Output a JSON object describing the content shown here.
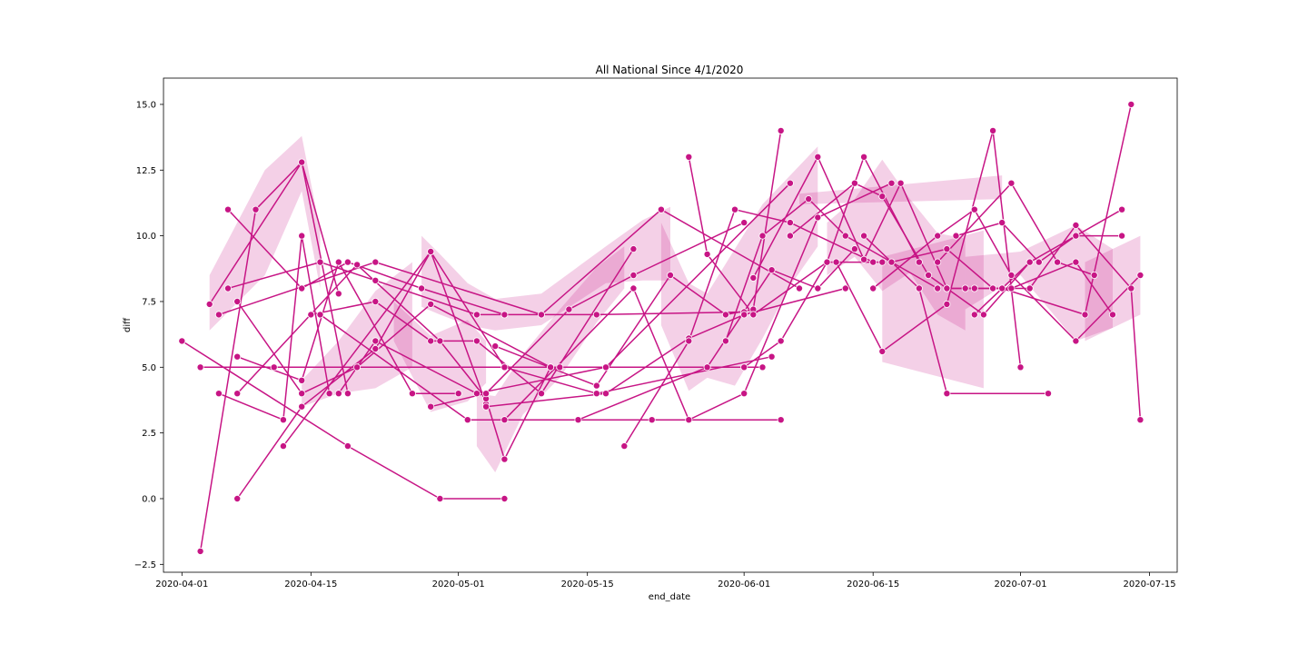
{
  "chart_data": {
    "type": "line",
    "title": "All National Since 4/1/2020",
    "xlabel": "end_date",
    "ylabel": "diff",
    "x_is_date": true,
    "xlim": [
      "2020-03-30",
      "2020-07-18"
    ],
    "ylim": [
      -2.8,
      16.0
    ],
    "x_ticks": [
      "2020-04-01",
      "2020-04-15",
      "2020-05-01",
      "2020-05-15",
      "2020-06-01",
      "2020-06-15",
      "2020-07-01",
      "2020-07-15"
    ],
    "y_ticks": [
      -2.5,
      0.0,
      2.5,
      5.0,
      7.5,
      10.0,
      12.5,
      15.0
    ],
    "y_tick_labels": [
      "−2.5",
      "0.0",
      "2.5",
      "5.0",
      "7.5",
      "10.0",
      "12.5",
      "15.0"
    ],
    "grid": false,
    "colors": {
      "line": "#c71585",
      "band": "#c71585",
      "marker_edge": "#ffffff"
    },
    "bands": [
      {
        "x": [
          "2020-04-04",
          "2020-04-10",
          "2020-04-14",
          "2020-04-16"
        ],
        "lower": [
          6.4,
          8.5,
          11.7,
          8.0
        ],
        "upper": [
          8.5,
          12.5,
          13.8,
          10.2
        ]
      },
      {
        "x": [
          "2020-04-14",
          "2020-04-18",
          "2020-04-22",
          "2020-04-26"
        ],
        "lower": [
          3.5,
          4.0,
          4.2,
          5.0
        ],
        "upper": [
          4.5,
          6.0,
          7.9,
          9.0
        ]
      },
      {
        "x": [
          "2020-04-27",
          "2020-04-29",
          "2020-05-02",
          "2020-05-05",
          "2020-05-10",
          "2020-05-17",
          "2020-05-21",
          "2020-05-24"
        ],
        "lower": [
          7.3,
          7.0,
          6.6,
          6.4,
          6.6,
          8.2,
          8.3,
          8.3
        ],
        "upper": [
          10.0,
          9.3,
          8.2,
          7.6,
          7.8,
          9.6,
          10.6,
          11.1
        ]
      },
      {
        "x": [
          "2020-04-24",
          "2020-04-28",
          "2020-05-02",
          "2020-05-04"
        ],
        "lower": [
          6.0,
          3.3,
          3.7,
          4.4
        ],
        "upper": [
          7.5,
          6.2,
          6.8,
          6.0
        ]
      },
      {
        "x": [
          "2020-05-03",
          "2020-05-05",
          "2020-05-08",
          "2020-05-12",
          "2020-05-16",
          "2020-05-19"
        ],
        "lower": [
          2.0,
          1.0,
          3.2,
          4.6,
          6.7,
          8.0
        ],
        "upper": [
          4.0,
          3.9,
          5.5,
          7.2,
          8.8,
          9.6
        ]
      },
      {
        "x": [
          "2020-05-23",
          "2020-05-26",
          "2020-05-28",
          "2020-05-31",
          "2020-06-03",
          "2020-06-06",
          "2020-06-09"
        ],
        "lower": [
          6.6,
          4.1,
          4.6,
          4.3,
          6.1,
          8.1,
          9.6
        ],
        "upper": [
          10.5,
          8.2,
          7.8,
          9.5,
          11.2,
          12.3,
          13.4
        ]
      },
      {
        "x": [
          "2020-06-10",
          "2020-06-13",
          "2020-06-16",
          "2020-06-19",
          "2020-06-22",
          "2020-06-25"
        ],
        "lower": [
          8.5,
          9.2,
          7.9,
          8.6,
          7.0,
          6.4
        ],
        "upper": [
          10.5,
          11.4,
          12.9,
          11.4,
          10.1,
          9.9
        ]
      },
      {
        "x": [
          "2020-06-16",
          "2020-06-27"
        ],
        "lower": [
          5.2,
          4.2
        ],
        "upper": [
          9.2,
          10.2
        ]
      },
      {
        "x": [
          "2020-06-07",
          "2020-06-29"
        ],
        "lower": [
          11.2,
          11.4
        ],
        "upper": [
          11.6,
          12.3
        ]
      },
      {
        "x": [
          "2020-06-25",
          "2020-07-01",
          "2020-07-07",
          "2020-07-11"
        ],
        "lower": [
          7.2,
          8.5,
          6.0,
          6.5
        ],
        "upper": [
          9.2,
          9.4,
          10.4,
          9.5
        ]
      },
      {
        "x": [
          "2020-07-08",
          "2020-07-14"
        ],
        "lower": [
          6.0,
          7.0
        ],
        "upper": [
          9.0,
          10.0
        ]
      }
    ],
    "series": [
      {
        "x": [
          "2020-04-01",
          "2020-04-19",
          "2020-04-29",
          "2020-05-06"
        ],
        "y": [
          6.0,
          2.0,
          0.0,
          0.0
        ]
      },
      {
        "x": [
          "2020-04-03",
          "2020-04-09",
          "2020-04-14",
          "2020-04-19"
        ],
        "y": [
          -2.0,
          11.0,
          12.8,
          4.0
        ]
      },
      {
        "x": [
          "2020-04-04",
          "2020-04-14",
          "2020-04-18"
        ],
        "y": [
          7.4,
          12.8,
          7.8
        ]
      },
      {
        "x": [
          "2020-04-05",
          "2020-04-12",
          "2020-04-14",
          "2020-04-17"
        ],
        "y": [
          4.0,
          3.0,
          10.0,
          4.0
        ]
      },
      {
        "x": [
          "2020-04-06",
          "2020-04-14",
          "2020-04-19",
          "2020-04-27",
          "2020-05-06"
        ],
        "y": [
          11.0,
          8.0,
          9.0,
          8.0,
          7.0
        ]
      },
      {
        "x": [
          "2020-04-07",
          "2020-04-14",
          "2020-04-22",
          "2020-04-28",
          "2020-05-04"
        ],
        "y": [
          0.0,
          3.5,
          5.7,
          9.4,
          3.6
        ]
      },
      {
        "x": [
          "2020-04-07",
          "2020-04-14",
          "2020-04-20",
          "2020-04-28",
          "2020-05-11"
        ],
        "y": [
          7.5,
          4.0,
          5.0,
          7.4,
          5.0
        ]
      },
      {
        "x": [
          "2020-04-07",
          "2020-04-14",
          "2020-04-18",
          "2020-04-26",
          "2020-05-01"
        ],
        "y": [
          5.4,
          4.5,
          9.0,
          4.0,
          4.0
        ]
      },
      {
        "x": [
          "2020-04-03",
          "2020-04-11",
          "2020-05-12",
          "2020-06-03"
        ],
        "y": [
          5.0,
          5.0,
          5.0,
          5.0
        ]
      },
      {
        "x": [
          "2020-04-06",
          "2020-04-16",
          "2020-04-22",
          "2020-05-03",
          "2020-05-16",
          "2020-06-01"
        ],
        "y": [
          8.0,
          9.0,
          8.3,
          7.0,
          7.0,
          7.1
        ]
      },
      {
        "x": [
          "2020-04-05",
          "2020-04-22",
          "2020-05-10",
          "2020-05-23",
          "2020-06-07"
        ],
        "y": [
          7.0,
          9.0,
          7.0,
          11.0,
          8.0
        ]
      },
      {
        "x": [
          "2020-04-07",
          "2020-04-20",
          "2020-04-29",
          "2020-05-04",
          "2020-05-06",
          "2020-05-11"
        ],
        "y": [
          4.0,
          8.9,
          6.0,
          3.8,
          1.5,
          5.0
        ]
      },
      {
        "x": [
          "2020-04-15",
          "2020-04-22",
          "2020-04-28",
          "2020-05-03",
          "2020-05-10",
          "2020-05-20"
        ],
        "y": [
          7.0,
          7.5,
          6.0,
          6.0,
          4.0,
          9.5
        ]
      },
      {
        "x": [
          "2020-04-12",
          "2020-04-28",
          "2020-05-06",
          "2020-05-16",
          "2020-06-04"
        ],
        "y": [
          2.0,
          9.4,
          5.0,
          4.0,
          5.4
        ]
      },
      {
        "x": [
          "2020-04-16",
          "2020-05-02",
          "2020-05-06",
          "2020-05-22",
          "2020-06-05"
        ],
        "y": [
          7.0,
          3.0,
          3.0,
          3.0,
          3.0
        ]
      },
      {
        "x": [
          "2020-04-18",
          "2020-04-22",
          "2020-05-03",
          "2020-05-17",
          "2020-06-06"
        ],
        "y": [
          4.0,
          6.0,
          4.0,
          5.0,
          12.0
        ]
      },
      {
        "x": [
          "2020-04-28",
          "2020-05-04",
          "2020-05-13",
          "2020-05-20",
          "2020-06-01"
        ],
        "y": [
          3.5,
          4.0,
          7.2,
          8.5,
          10.5
        ]
      },
      {
        "x": [
          "2020-05-04",
          "2020-05-17",
          "2020-05-26",
          "2020-06-01",
          "2020-06-12"
        ],
        "y": [
          3.5,
          4.0,
          6.1,
          7.0,
          8.0
        ]
      },
      {
        "x": [
          "2020-05-05",
          "2020-05-16",
          "2020-05-24",
          "2020-05-30",
          "2020-06-02",
          "2020-06-05"
        ],
        "y": [
          5.8,
          4.3,
          8.5,
          7.0,
          7.2,
          14.0
        ]
      },
      {
        "x": [
          "2020-05-06",
          "2020-05-20",
          "2020-05-26",
          "2020-06-01",
          "2020-06-09",
          "2020-06-17"
        ],
        "y": [
          3.0,
          8.0,
          3.0,
          4.0,
          10.7,
          12.0
        ]
      },
      {
        "x": [
          "2020-05-19",
          "2020-05-26",
          "2020-05-31",
          "2020-06-06",
          "2020-06-15"
        ],
        "y": [
          2.0,
          6.0,
          11.0,
          10.5,
          9.0
        ]
      },
      {
        "x": [
          "2020-05-14",
          "2020-05-28",
          "2020-06-04",
          "2020-06-09",
          "2020-06-13"
        ],
        "y": [
          3.0,
          5.0,
          8.7,
          8.0,
          9.5
        ]
      },
      {
        "x": [
          "2020-05-26",
          "2020-05-28",
          "2020-06-02",
          "2020-06-10",
          "2020-06-16"
        ],
        "y": [
          13.0,
          9.3,
          7.0,
          9.0,
          9.0
        ]
      },
      {
        "x": [
          "2020-05-30",
          "2020-06-03",
          "2020-06-08",
          "2020-06-12",
          "2020-06-22"
        ],
        "y": [
          6.0,
          10.0,
          11.4,
          10.0,
          8.0
        ]
      },
      {
        "x": [
          "2020-06-01",
          "2020-06-05",
          "2020-06-10",
          "2020-06-14",
          "2020-06-20"
        ],
        "y": [
          5.0,
          6.0,
          9.0,
          13.0,
          9.0
        ]
      },
      {
        "x": [
          "2020-06-02",
          "2020-06-09",
          "2020-06-14",
          "2020-06-18",
          "2020-06-23",
          "2020-06-26"
        ],
        "y": [
          8.4,
          13.0,
          9.1,
          12.0,
          8.0,
          8.0
        ]
      },
      {
        "x": [
          "2020-06-06",
          "2020-06-13",
          "2020-06-16",
          "2020-06-21",
          "2020-06-27",
          "2020-07-02"
        ],
        "y": [
          10.0,
          12.0,
          11.5,
          8.5,
          7.0,
          9.0
        ]
      },
      {
        "x": [
          "2020-06-11",
          "2020-06-16",
          "2020-06-23",
          "2020-06-28",
          "2020-07-01"
        ],
        "y": [
          9.0,
          5.6,
          7.4,
          14.0,
          5.0
        ]
      },
      {
        "x": [
          "2020-06-14",
          "2020-06-20",
          "2020-06-23",
          "2020-07-04"
        ],
        "y": [
          10.0,
          8.0,
          4.0,
          4.0
        ]
      },
      {
        "x": [
          "2020-06-15",
          "2020-06-22",
          "2020-06-26",
          "2020-06-30",
          "2020-07-07",
          "2020-07-14"
        ],
        "y": [
          8.0,
          10.0,
          11.0,
          8.5,
          6.0,
          8.5
        ]
      },
      {
        "x": [
          "2020-06-17",
          "2020-06-23",
          "2020-06-28",
          "2020-07-02",
          "2020-07-07",
          "2020-07-13",
          "2020-07-14"
        ],
        "y": [
          9.0,
          9.5,
          8.0,
          8.0,
          10.4,
          8.0,
          3.0
        ]
      },
      {
        "x": [
          "2020-06-24",
          "2020-06-29",
          "2020-07-03",
          "2020-07-07",
          "2020-07-12"
        ],
        "y": [
          10.0,
          10.5,
          9.0,
          10.0,
          10.0
        ]
      },
      {
        "x": [
          "2020-06-22",
          "2020-06-30",
          "2020-07-05",
          "2020-07-09"
        ],
        "y": [
          9.0,
          12.0,
          9.0,
          8.5
        ]
      },
      {
        "x": [
          "2020-06-23",
          "2020-06-29",
          "2020-07-08",
          "2020-07-13"
        ],
        "y": [
          8.0,
          8.0,
          7.0,
          15.0
        ]
      },
      {
        "x": [
          "2020-06-25",
          "2020-06-30",
          "2020-07-07",
          "2020-07-11"
        ],
        "y": [
          8.0,
          8.0,
          9.0,
          7.0
        ]
      },
      {
        "x": [
          "2020-06-26",
          "2020-07-02",
          "2020-07-07",
          "2020-07-12"
        ],
        "y": [
          7.0,
          9.0,
          10.0,
          11.0
        ]
      }
    ]
  }
}
